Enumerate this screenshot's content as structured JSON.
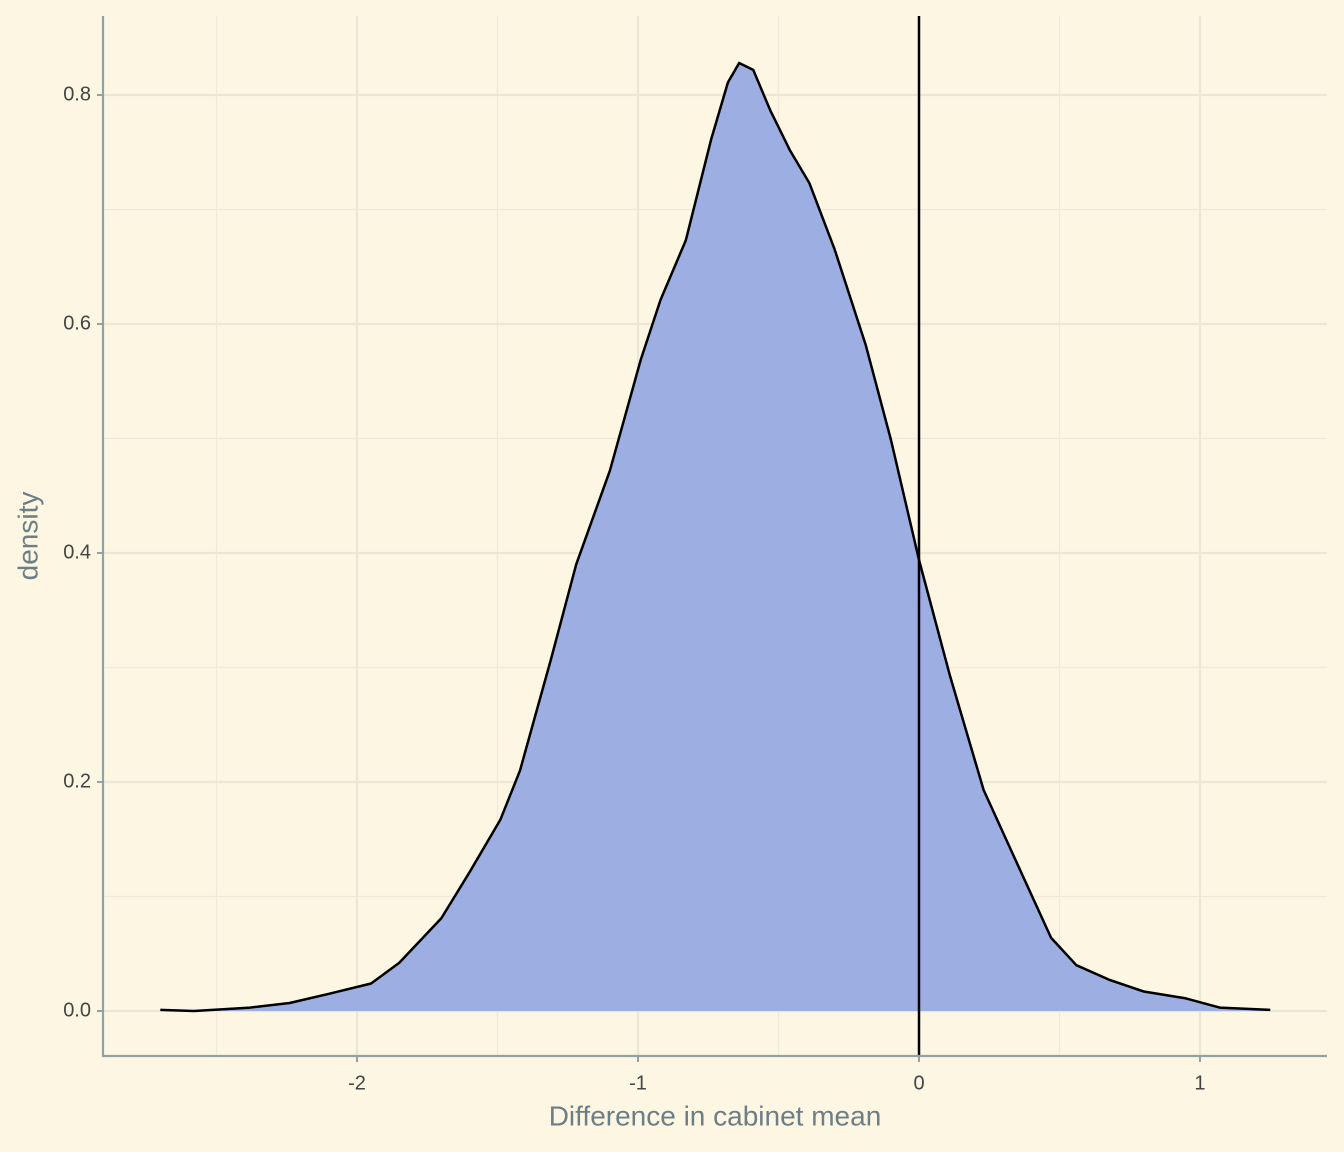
{
  "chart_data": {
    "type": "density",
    "x_label": "Difference in cabinet mean",
    "y_label": "density",
    "x": [
      -2.7,
      -2.58,
      -2.38,
      -2.24,
      -2.1,
      -1.95,
      -1.85,
      -1.7,
      -1.6,
      -1.49,
      -1.42,
      -1.31,
      -1.22,
      -1.1,
      -0.99,
      -0.92,
      -0.83,
      -0.74,
      -0.68,
      -0.64,
      -0.59,
      -0.53,
      -0.46,
      -0.39,
      -0.3,
      -0.19,
      -0.1,
      0.0,
      0.11,
      0.23,
      0.36,
      0.47,
      0.56,
      0.68,
      0.8,
      0.95,
      1.07,
      1.25
    ],
    "values": [
      0.001,
      0.0,
      0.003,
      0.007,
      0.015,
      0.024,
      0.042,
      0.081,
      0.121,
      0.167,
      0.21,
      0.307,
      0.39,
      0.472,
      0.569,
      0.621,
      0.673,
      0.761,
      0.811,
      0.828,
      0.822,
      0.787,
      0.752,
      0.723,
      0.665,
      0.582,
      0.499,
      0.394,
      0.293,
      0.193,
      0.123,
      0.064,
      0.04,
      0.027,
      0.017,
      0.011,
      0.003,
      0.001
    ],
    "fill": "#9daee2",
    "line_color": "#000000",
    "vline": 0,
    "xlim": [
      -2.904,
      1.452
    ],
    "ylim": [
      -0.0393,
      0.869
    ],
    "xticks": [
      -2,
      -1,
      0,
      1
    ],
    "yticks": [
      {
        "value": 0,
        "label": "0.0"
      },
      0.2,
      0.4,
      0.6,
      0.8
    ],
    "minor_xticks": [
      -2.5,
      -1.5,
      -0.5,
      0.5
    ],
    "minor_yticks": [
      0.1,
      0.3,
      0.5,
      0.7
    ],
    "grid": true
  }
}
